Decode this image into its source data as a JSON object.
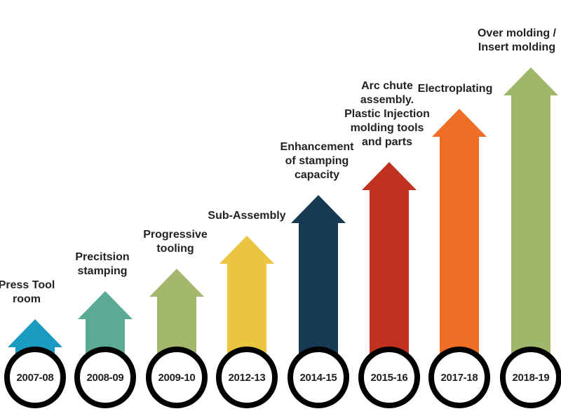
{
  "nodes": [
    {
      "year": "2007-08",
      "label": [
        "Press Tool",
        "room"
      ]
    },
    {
      "year": "2008-09",
      "label": [
        "Precitsion",
        "stamping"
      ]
    },
    {
      "year": "2009-10",
      "label": [
        "Progressive",
        "tooling"
      ]
    },
    {
      "year": "2012-13",
      "label": [
        "Sub-Assembly"
      ]
    },
    {
      "year": "2014-15",
      "label": [
        "Enhancement",
        "of stamping",
        "capacity"
      ]
    },
    {
      "year": "2015-16",
      "label": [
        "Arc chute",
        "assembly.",
        "Plastic Injection",
        "molding tools",
        "and parts"
      ]
    },
    {
      "year": "2017-18",
      "label": [
        "Electroplating"
      ]
    },
    {
      "year": "2018-19",
      "label": [
        "Over molding /",
        "Insert molding"
      ]
    }
  ]
}
